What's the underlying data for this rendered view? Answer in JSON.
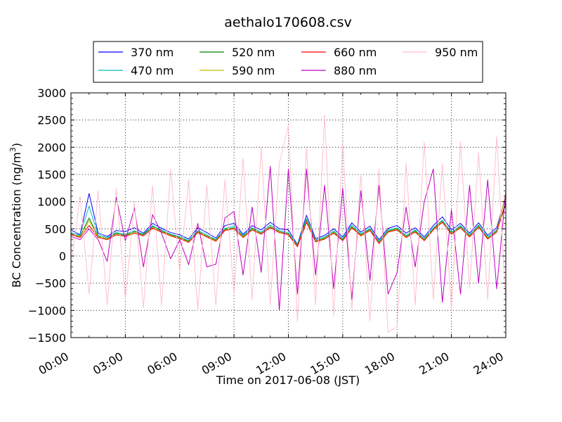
{
  "chart_data": {
    "type": "line",
    "title": "aethalo170608.csv",
    "xlabel": "Time on 2017-06-08 (JST)",
    "ylabel_main": "BC Concentration (ng/m",
    "ylabel_sup": "3",
    "ylabel_close": ")",
    "xlim": [
      "00:00",
      "24:00"
    ],
    "ylim": [
      -1500,
      3000
    ],
    "x_ticks": [
      "00:00",
      "03:00",
      "06:00",
      "09:00",
      "12:00",
      "15:00",
      "18:00",
      "21:00",
      "24:00"
    ],
    "y_ticks": [
      "−1500",
      "−1000",
      "−500",
      "0",
      "500",
      "1000",
      "1500",
      "2000",
      "2500",
      "3000"
    ],
    "grid": true,
    "legend_placement": "top-center",
    "series": [
      {
        "name": "370 nm",
        "color": "#0000ff",
        "x_hours": [
          0.0,
          0.5,
          1.0,
          1.5,
          2.0,
          2.5,
          3.0,
          3.5,
          4.0,
          4.5,
          5.0,
          5.5,
          6.0,
          6.5,
          7.0,
          7.5,
          8.0,
          8.5,
          9.0,
          9.5,
          10.0,
          10.5,
          11.0,
          11.5,
          12.0,
          12.5,
          13.0,
          13.5,
          14.0,
          14.5,
          15.0,
          15.5,
          16.0,
          16.5,
          17.0,
          17.5,
          18.0,
          18.5,
          19.0,
          19.5,
          20.0,
          20.5,
          21.0,
          21.5,
          22.0,
          22.5,
          23.0,
          23.5,
          24.0
        ],
        "values": [
          480,
          390,
          1150,
          420,
          360,
          470,
          450,
          520,
          420,
          600,
          510,
          430,
          390,
          310,
          520,
          430,
          330,
          560,
          600,
          400,
          560,
          480,
          620,
          500,
          480,
          210,
          750,
          320,
          380,
          500,
          350,
          610,
          440,
          550,
          300,
          510,
          560,
          420,
          520,
          350,
          560,
          720,
          480,
          600,
          420,
          610,
          380,
          520,
          1100
        ]
      },
      {
        "name": "470 nm",
        "color": "#00bfbf",
        "x_hours": [
          0.0,
          0.5,
          1.0,
          1.5,
          2.0,
          2.5,
          3.0,
          3.5,
          4.0,
          4.5,
          5.0,
          5.5,
          6.0,
          6.5,
          7.0,
          7.5,
          8.0,
          8.5,
          9.0,
          9.5,
          10.0,
          10.5,
          11.0,
          11.5,
          12.0,
          12.5,
          13.0,
          13.5,
          14.0,
          14.5,
          15.0,
          15.5,
          16.0,
          16.5,
          17.0,
          17.5,
          18.0,
          18.5,
          19.0,
          19.5,
          20.0,
          20.5,
          21.0,
          21.5,
          22.0,
          22.5,
          23.0,
          23.5,
          24.0
        ],
        "values": [
          430,
          380,
          920,
          380,
          340,
          430,
          400,
          470,
          400,
          560,
          480,
          400,
          360,
          280,
          470,
          390,
          300,
          510,
          550,
          380,
          520,
          440,
          570,
          470,
          430,
          200,
          690,
          300,
          350,
          460,
          320,
          570,
          410,
          510,
          270,
          480,
          520,
          380,
          480,
          320,
          520,
          660,
          440,
          560,
          390,
          570,
          350,
          480,
          980
        ]
      },
      {
        "name": "520 nm",
        "color": "#008000",
        "x_hours": [
          0.0,
          0.5,
          1.0,
          1.5,
          2.0,
          2.5,
          3.0,
          3.5,
          4.0,
          4.5,
          5.0,
          5.5,
          6.0,
          6.5,
          7.0,
          7.5,
          8.0,
          8.5,
          9.0,
          9.5,
          10.0,
          10.5,
          11.0,
          11.5,
          12.0,
          12.5,
          13.0,
          13.5,
          14.0,
          14.5,
          15.0,
          15.5,
          16.0,
          16.5,
          17.0,
          17.5,
          18.0,
          18.5,
          19.0,
          19.5,
          20.0,
          20.5,
          21.0,
          21.5,
          22.0,
          22.5,
          23.0,
          23.5,
          24.0
        ],
        "values": [
          410,
          360,
          700,
          360,
          320,
          420,
          380,
          450,
          390,
          540,
          460,
          390,
          340,
          270,
          450,
          370,
          290,
          490,
          520,
          360,
          500,
          420,
          540,
          450,
          410,
          190,
          660,
          280,
          330,
          440,
          300,
          540,
          390,
          490,
          250,
          460,
          500,
          360,
          460,
          300,
          500,
          640,
          420,
          540,
          370,
          550,
          330,
          460,
          950
        ]
      },
      {
        "name": "590 nm",
        "color": "#bfbf00",
        "x_hours": [
          0.0,
          0.5,
          1.0,
          1.5,
          2.0,
          2.5,
          3.0,
          3.5,
          4.0,
          4.5,
          5.0,
          5.5,
          6.0,
          6.5,
          7.0,
          7.5,
          8.0,
          8.5,
          9.0,
          9.5,
          10.0,
          10.5,
          11.0,
          11.5,
          12.0,
          12.5,
          13.0,
          13.5,
          14.0,
          14.5,
          15.0,
          15.5,
          16.0,
          16.5,
          17.0,
          17.5,
          18.0,
          18.5,
          19.0,
          19.5,
          20.0,
          20.5,
          21.0,
          21.5,
          22.0,
          22.5,
          23.0,
          23.5,
          24.0
        ],
        "values": [
          400,
          350,
          650,
          350,
          310,
          400,
          370,
          430,
          380,
          520,
          450,
          380,
          330,
          260,
          440,
          360,
          280,
          480,
          510,
          350,
          490,
          410,
          530,
          440,
          400,
          180,
          640,
          270,
          320,
          430,
          290,
          530,
          380,
          480,
          240,
          450,
          490,
          350,
          450,
          290,
          490,
          630,
          410,
          530,
          360,
          540,
          320,
          450,
          1150
        ]
      },
      {
        "name": "660 nm",
        "color": "#ff0000",
        "x_hours": [
          0.0,
          0.5,
          1.0,
          1.5,
          2.0,
          2.5,
          3.0,
          3.5,
          4.0,
          4.5,
          5.0,
          5.5,
          6.0,
          6.5,
          7.0,
          7.5,
          8.0,
          8.5,
          9.0,
          9.5,
          10.0,
          10.5,
          11.0,
          11.5,
          12.0,
          12.5,
          13.0,
          13.5,
          14.0,
          14.5,
          15.0,
          15.5,
          16.0,
          16.5,
          17.0,
          17.5,
          18.0,
          18.5,
          19.0,
          19.5,
          20.0,
          20.5,
          21.0,
          21.5,
          22.0,
          22.5,
          23.0,
          23.5,
          24.0
        ],
        "values": [
          390,
          340,
          560,
          340,
          300,
          390,
          360,
          420,
          370,
          510,
          440,
          370,
          320,
          250,
          430,
          350,
          270,
          470,
          500,
          340,
          480,
          400,
          520,
          430,
          390,
          170,
          620,
          260,
          310,
          420,
          280,
          520,
          370,
          470,
          230,
          440,
          480,
          340,
          440,
          280,
          480,
          620,
          400,
          520,
          350,
          530,
          310,
          440,
          1000
        ]
      },
      {
        "name": "880 nm",
        "color": "#bf00bf",
        "x_hours": [
          0.0,
          0.5,
          1.0,
          1.5,
          2.0,
          2.5,
          3.0,
          3.5,
          4.0,
          4.5,
          5.0,
          5.5,
          6.0,
          6.5,
          7.0,
          7.5,
          8.0,
          8.5,
          9.0,
          9.5,
          10.0,
          10.5,
          11.0,
          11.5,
          12.0,
          12.5,
          13.0,
          13.5,
          14.0,
          14.5,
          15.0,
          15.5,
          16.0,
          16.5,
          17.0,
          17.5,
          18.0,
          18.5,
          19.0,
          19.5,
          20.0,
          20.5,
          21.0,
          21.5,
          22.0,
          22.5,
          23.0,
          23.5,
          24.0
        ],
        "values": [
          360,
          300,
          500,
          300,
          -100,
          1080,
          280,
          880,
          -200,
          760,
          420,
          -50,
          300,
          -160,
          600,
          -200,
          -150,
          700,
          820,
          -350,
          900,
          -300,
          1650,
          -1000,
          1600,
          -700,
          1600,
          -350,
          1300,
          -600,
          1250,
          -800,
          1200,
          -450,
          1300,
          -700,
          -300,
          900,
          -200,
          1000,
          1600,
          -850,
          850,
          -700,
          1300,
          -500,
          1400,
          -600,
          1200
        ]
      },
      {
        "name": "950 nm",
        "color": "#ffc0cb",
        "x_hours": [
          0.0,
          0.5,
          1.0,
          1.5,
          2.0,
          2.5,
          3.0,
          3.5,
          4.0,
          4.5,
          5.0,
          5.5,
          6.0,
          6.5,
          7.0,
          7.5,
          8.0,
          8.5,
          9.0,
          9.5,
          10.0,
          10.5,
          11.0,
          11.5,
          12.0,
          12.5,
          13.0,
          13.5,
          14.0,
          14.5,
          15.0,
          15.5,
          16.0,
          16.5,
          17.0,
          17.5,
          18.0,
          18.5,
          19.0,
          19.5,
          20.0,
          20.5,
          21.0,
          21.5,
          22.0,
          22.5,
          23.0,
          23.5,
          24.0
        ],
        "values": [
          -200,
          1100,
          -700,
          1200,
          -900,
          1250,
          -800,
          1000,
          -950,
          1300,
          -900,
          1600,
          -300,
          1400,
          -1000,
          1300,
          -900,
          1400,
          -700,
          1800,
          -800,
          2000,
          -900,
          1700,
          2400,
          -1200,
          2000,
          -900,
          2600,
          -1100,
          2100,
          -1000,
          1500,
          -1200,
          1600,
          -1400,
          -1300,
          1700,
          -900,
          2100,
          -800,
          1700,
          -1000,
          2100,
          -600,
          1900,
          -800,
          2200,
          -900
        ]
      }
    ]
  }
}
